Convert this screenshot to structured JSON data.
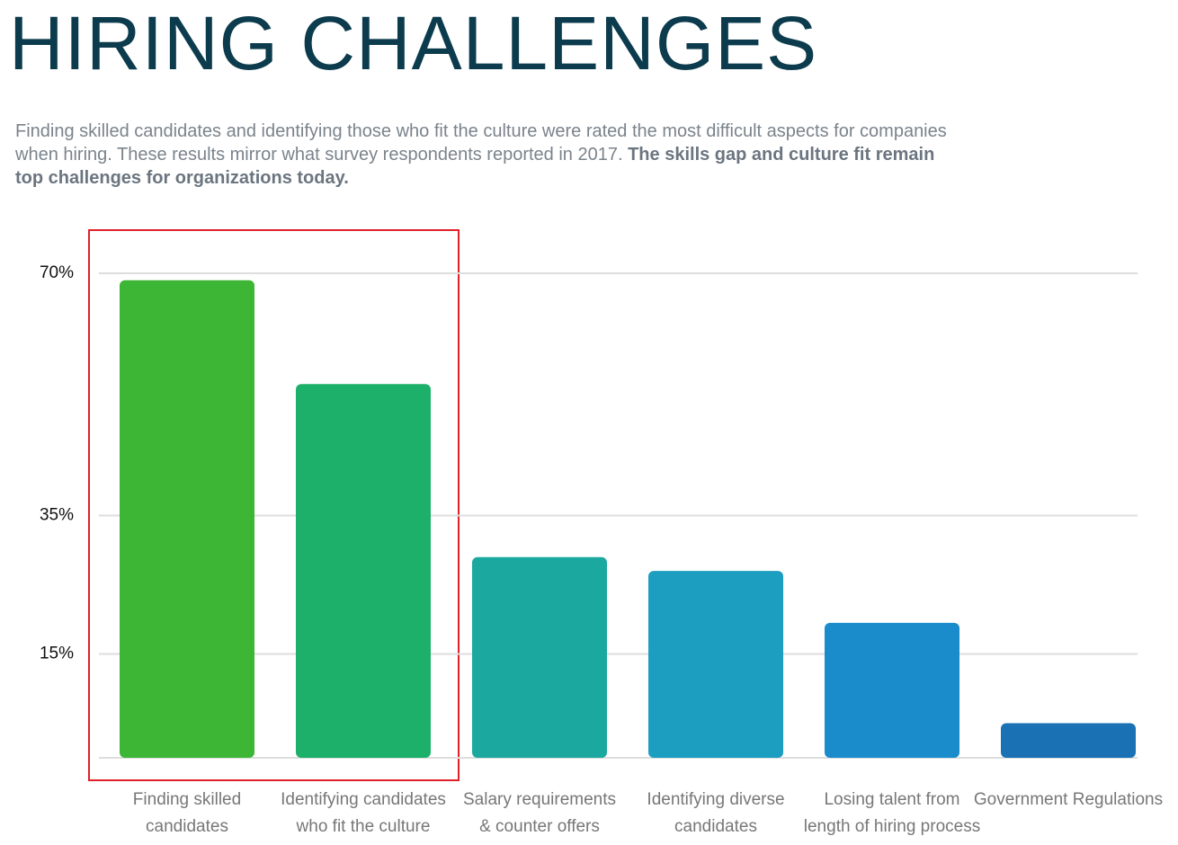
{
  "chart_data": {
    "type": "bar",
    "title": "HIRING CHALLENGES",
    "subtitle": "Finding skilled candidates and identifying those who fit the culture were rated the most difficult aspects for companies when hiring. These results mirror what survey respondents reported in 2017.",
    "subtitle_bold": "The skills gap and culture fit remain top challenges for organizations today.",
    "categories": [
      [
        "Finding skilled",
        "candidates"
      ],
      [
        "Identifying candidates",
        "who fit the culture"
      ],
      [
        "Salary requirements",
        "& counter offers"
      ],
      [
        "Identifying diverse",
        "candidates"
      ],
      [
        "Losing talent from",
        "length of hiring process"
      ],
      [
        "Government Regulations"
      ]
    ],
    "values": [
      69,
      54,
      29,
      27,
      19.5,
      5
    ],
    "colors": [
      "#3db535",
      "#1db06a",
      "#1ba89f",
      "#1b9ec0",
      "#1a8bcb",
      "#1a72b5"
    ],
    "ylim": [
      0,
      70
    ],
    "yticks": [
      {
        "value": 70,
        "label": "70%"
      },
      {
        "value": 35,
        "label": "35%"
      },
      {
        "value": 15,
        "label": "15%"
      }
    ],
    "grid": true
  }
}
